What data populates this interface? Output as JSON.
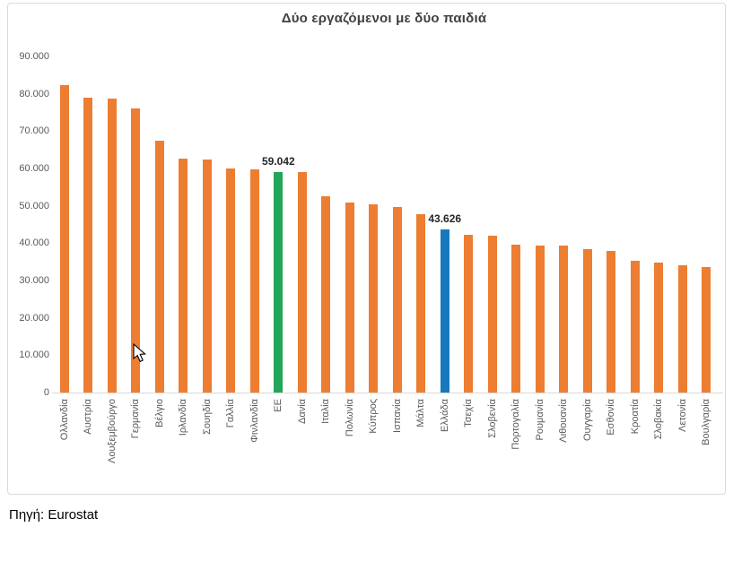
{
  "chart_data": {
    "type": "bar",
    "title": "Δύο εργαζόμενοι με δύο παιδιά",
    "categories": [
      "Ολλανδία",
      "Αυστρία",
      "Λουξεμβούργο",
      "Γερμανία",
      "Βέλγιο",
      "Ιρλανδία",
      "Σουηδία",
      "Γαλλία",
      "Φινλανδία",
      "ΕΕ",
      "Δανία",
      "Ιταλία",
      "Πολωνία",
      "Κύπρος",
      "Ισπανία",
      "Μάλτα",
      "Ελλάδα",
      "Τσεχία",
      "Σλοβενία",
      "Πορτογαλία",
      "Ρουμανία",
      "Λιθουανία",
      "Ουγγαρία",
      "Εσθονία",
      "Κροατία",
      "Σλοβακία",
      "Λετονία",
      "Βουλγαρία"
    ],
    "values": [
      82400,
      79000,
      78700,
      76000,
      67400,
      62600,
      62300,
      60000,
      59700,
      59042,
      59000,
      52500,
      51000,
      50400,
      49800,
      47700,
      43626,
      42200,
      41900,
      39600,
      39400,
      39300,
      38500,
      37900,
      35400,
      34700,
      34200,
      33700
    ],
    "ylim": [
      0,
      90000
    ],
    "yticks": [
      {
        "value": 0,
        "label": "0"
      },
      {
        "value": 10000,
        "label": "10.000"
      },
      {
        "value": 20000,
        "label": "20.000"
      },
      {
        "value": 30000,
        "label": "30.000"
      },
      {
        "value": 40000,
        "label": "40.000"
      },
      {
        "value": 50000,
        "label": "50.000"
      },
      {
        "value": 60000,
        "label": "60.000"
      },
      {
        "value": 70000,
        "label": "70.000"
      },
      {
        "value": 80000,
        "label": "80.000"
      },
      {
        "value": 90000,
        "label": "90.000"
      }
    ],
    "grid": false,
    "legend": false,
    "bar_color": "#ED7D31",
    "highlights": [
      {
        "category": "ΕΕ",
        "color": "#21A65A",
        "data_label": "59.042"
      },
      {
        "category": "Ελλάδα",
        "color": "#1878BE",
        "data_label": "43.626"
      }
    ],
    "axis_color": "#D9D9D9",
    "label_color": "#595959",
    "title_color": "#404040"
  },
  "source": {
    "text": "Πηγή: Eurostat"
  }
}
